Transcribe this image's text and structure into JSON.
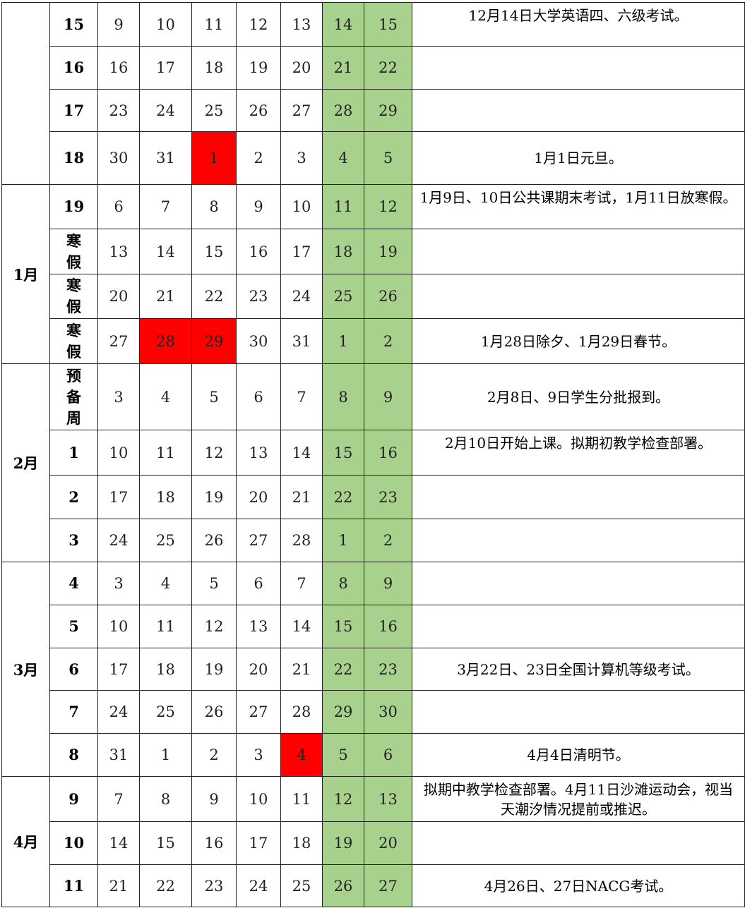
{
  "colors": {
    "weekend": "#a9d18e",
    "holiday": "#ff0000"
  },
  "groups": [
    {
      "month": "",
      "rows": [
        {
          "week": "15",
          "days": [
            "9",
            "10",
            "11",
            "12",
            "13",
            "14",
            "15"
          ],
          "red": [],
          "note": "12月14日大学英语四、六级考试。",
          "top": true
        },
        {
          "week": "16",
          "days": [
            "16",
            "17",
            "18",
            "19",
            "20",
            "21",
            "22"
          ],
          "red": [],
          "note": ""
        },
        {
          "week": "17",
          "days": [
            "23",
            "24",
            "25",
            "26",
            "27",
            "28",
            "29"
          ],
          "red": [],
          "note": ""
        },
        {
          "week": "18",
          "days": [
            "30",
            "31",
            "1",
            "2",
            "3",
            "4",
            "5"
          ],
          "red": [
            2
          ],
          "note": "1月1日元旦。"
        }
      ]
    },
    {
      "month": "1月",
      "rows": [
        {
          "week": "19",
          "days": [
            "6",
            "7",
            "8",
            "9",
            "10",
            "11",
            "12"
          ],
          "red": [],
          "note": "1月9日、10日公共课期末考试，1月11日放寒假。",
          "top": true
        },
        {
          "week": "寒假",
          "days": [
            "13",
            "14",
            "15",
            "16",
            "17",
            "18",
            "19"
          ],
          "red": [],
          "note": ""
        },
        {
          "week": "寒假",
          "days": [
            "20",
            "21",
            "22",
            "23",
            "24",
            "25",
            "26"
          ],
          "red": [],
          "note": ""
        },
        {
          "week": "寒假",
          "days": [
            "27",
            "28",
            "29",
            "30",
            "31",
            "1",
            "2"
          ],
          "red": [
            1,
            2
          ],
          "note": "1月28日除夕、1月29日春节。"
        }
      ]
    },
    {
      "month": "2月",
      "rows": [
        {
          "week": "预备周",
          "days": [
            "3",
            "4",
            "5",
            "6",
            "7",
            "8",
            "9"
          ],
          "red": [],
          "note": "2月8日、9日学生分批报到。"
        },
        {
          "week": "1",
          "days": [
            "10",
            "11",
            "12",
            "13",
            "14",
            "15",
            "16"
          ],
          "red": [],
          "note": "2月10日开始上课。拟期初教学检查部署。",
          "top": true
        },
        {
          "week": "2",
          "days": [
            "17",
            "18",
            "19",
            "20",
            "21",
            "22",
            "23"
          ],
          "red": [],
          "note": ""
        },
        {
          "week": "3",
          "days": [
            "24",
            "25",
            "26",
            "27",
            "28",
            "1",
            "2"
          ],
          "red": [],
          "note": ""
        }
      ]
    },
    {
      "month": "3月",
      "rows": [
        {
          "week": "4",
          "days": [
            "3",
            "4",
            "5",
            "6",
            "7",
            "8",
            "9"
          ],
          "red": [],
          "note": ""
        },
        {
          "week": "5",
          "days": [
            "10",
            "11",
            "12",
            "13",
            "14",
            "15",
            "16"
          ],
          "red": [],
          "note": ""
        },
        {
          "week": "6",
          "days": [
            "17",
            "18",
            "19",
            "20",
            "21",
            "22",
            "23"
          ],
          "red": [],
          "note": "3月22日、23日全国计算机等级考试。"
        },
        {
          "week": "7",
          "days": [
            "24",
            "25",
            "26",
            "27",
            "28",
            "29",
            "30"
          ],
          "red": [],
          "note": ""
        },
        {
          "week": "8",
          "days": [
            "31",
            "1",
            "2",
            "3",
            "4",
            "5",
            "6"
          ],
          "red": [
            4
          ],
          "note": "4月4日清明节。"
        }
      ]
    },
    {
      "month": "4月",
      "rows": [
        {
          "week": "9",
          "days": [
            "7",
            "8",
            "9",
            "10",
            "11",
            "12",
            "13"
          ],
          "red": [],
          "note": "拟期中教学检查部署。4月11日沙滩运动会，视当天潮汐情况提前或推迟。",
          "top": true
        },
        {
          "week": "10",
          "days": [
            "14",
            "15",
            "16",
            "17",
            "18",
            "19",
            "20"
          ],
          "red": [],
          "note": ""
        },
        {
          "week": "11",
          "days": [
            "21",
            "22",
            "23",
            "24",
            "25",
            "26",
            "27"
          ],
          "red": [],
          "note": "4月26日、27日NACG考试。"
        }
      ]
    }
  ]
}
